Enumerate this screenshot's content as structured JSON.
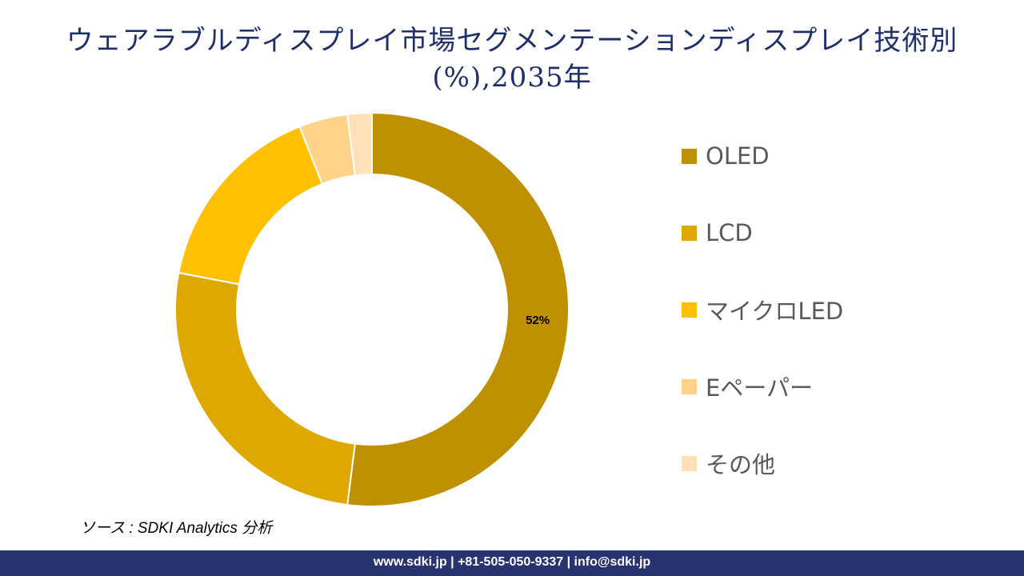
{
  "chart_data": {
    "type": "pie",
    "donut": true,
    "title": "ウェアラブルディスプレイ市場セグメンテーションディスプレイ技術別 (%),2035年",
    "categories": [
      "OLED",
      "LCD",
      "マイクロLED",
      "Eペーパー",
      "その他"
    ],
    "values": [
      52,
      26,
      16,
      4,
      2
    ],
    "colors": [
      "#BF9000",
      "#DFA800",
      "#FFC000",
      "#FFD38A",
      "#FFE0B8"
    ],
    "data_labels": [
      {
        "category": "OLED",
        "text": "52%"
      }
    ],
    "legend_position": "right"
  },
  "source": "ソース : SDKI Analytics 分析",
  "footer": "www.sdki.jp | +81-505-050-9337 | info@sdki.jp"
}
